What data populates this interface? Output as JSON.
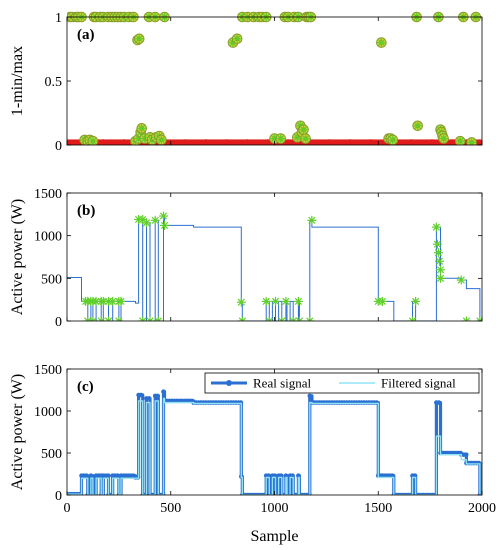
{
  "chart_data": [
    {
      "type": "scatter",
      "panel_label": "(a)",
      "ylabel": "1-min/max",
      "xlim": [
        0,
        2000
      ],
      "ylim": [
        0,
        1
      ],
      "yticks": [
        {
          "v": 0,
          "label": "0"
        },
        {
          "v": 0.5,
          "label": "0.5"
        },
        {
          "v": 1,
          "label": "1"
        }
      ],
      "xticks": [
        0,
        500,
        1000,
        1500,
        2000
      ],
      "grid": false,
      "colors": {
        "red_points": "#e01b1b",
        "circles": "#8a9a2a",
        "markers": "#5fcf2a"
      },
      "baseline_band": {
        "x_range": [
          0,
          2000
        ],
        "y_max": 0.02
      },
      "marker_points": [
        {
          "x": 15,
          "y": 1
        },
        {
          "x": 25,
          "y": 1
        },
        {
          "x": 45,
          "y": 1
        },
        {
          "x": 55,
          "y": 1
        },
        {
          "x": 70,
          "y": 1
        },
        {
          "x": 85,
          "y": 0.04
        },
        {
          "x": 100,
          "y": 0.03
        },
        {
          "x": 110,
          "y": 0.04
        },
        {
          "x": 125,
          "y": 0.03
        },
        {
          "x": 130,
          "y": 1
        },
        {
          "x": 140,
          "y": 1
        },
        {
          "x": 160,
          "y": 1
        },
        {
          "x": 175,
          "y": 1
        },
        {
          "x": 200,
          "y": 1
        },
        {
          "x": 215,
          "y": 1
        },
        {
          "x": 230,
          "y": 1
        },
        {
          "x": 245,
          "y": 1
        },
        {
          "x": 260,
          "y": 1
        },
        {
          "x": 275,
          "y": 1
        },
        {
          "x": 300,
          "y": 1
        },
        {
          "x": 320,
          "y": 1
        },
        {
          "x": 330,
          "y": 0.03
        },
        {
          "x": 340,
          "y": 0.82
        },
        {
          "x": 348,
          "y": 0.83
        },
        {
          "x": 345,
          "y": 0.05
        },
        {
          "x": 355,
          "y": 0.1
        },
        {
          "x": 360,
          "y": 0.13
        },
        {
          "x": 375,
          "y": 0.05
        },
        {
          "x": 395,
          "y": 1
        },
        {
          "x": 400,
          "y": 0.06
        },
        {
          "x": 410,
          "y": 0.04
        },
        {
          "x": 425,
          "y": 1
        },
        {
          "x": 430,
          "y": 0.06
        },
        {
          "x": 445,
          "y": 0.07
        },
        {
          "x": 455,
          "y": 0.04
        },
        {
          "x": 470,
          "y": 1
        },
        {
          "x": 800,
          "y": 0.8
        },
        {
          "x": 820,
          "y": 0.83
        },
        {
          "x": 845,
          "y": 1
        },
        {
          "x": 870,
          "y": 1
        },
        {
          "x": 900,
          "y": 1
        },
        {
          "x": 925,
          "y": 1
        },
        {
          "x": 940,
          "y": 1
        },
        {
          "x": 960,
          "y": 1
        },
        {
          "x": 1000,
          "y": 0.05
        },
        {
          "x": 1030,
          "y": 0.05
        },
        {
          "x": 1050,
          "y": 1
        },
        {
          "x": 1065,
          "y": 1
        },
        {
          "x": 1095,
          "y": 1
        },
        {
          "x": 1110,
          "y": 0.06
        },
        {
          "x": 1115,
          "y": 1
        },
        {
          "x": 1125,
          "y": 0.15
        },
        {
          "x": 1132,
          "y": 0.1
        },
        {
          "x": 1140,
          "y": 0.12
        },
        {
          "x": 1150,
          "y": 0.05
        },
        {
          "x": 1155,
          "y": 1
        },
        {
          "x": 1165,
          "y": 1
        },
        {
          "x": 1175,
          "y": 1
        },
        {
          "x": 1515,
          "y": 0.8
        },
        {
          "x": 1550,
          "y": 0.05
        },
        {
          "x": 1560,
          "y": 0.05
        },
        {
          "x": 1570,
          "y": 0.04
        },
        {
          "x": 1685,
          "y": 1
        },
        {
          "x": 1690,
          "y": 0.15
        },
        {
          "x": 1800,
          "y": 0.12
        },
        {
          "x": 1805,
          "y": 0.1
        },
        {
          "x": 1810,
          "y": 0.07
        },
        {
          "x": 1815,
          "y": 0.05
        },
        {
          "x": 1790,
          "y": 1
        },
        {
          "x": 1895,
          "y": 0.03
        },
        {
          "x": 1910,
          "y": 1
        },
        {
          "x": 1950,
          "y": 0.02
        },
        {
          "x": 1970,
          "y": 1
        }
      ]
    },
    {
      "type": "line",
      "panel_label": "(b)",
      "ylabel": "Active power (W)",
      "xlim": [
        0,
        2000
      ],
      "ylim": [
        0,
        1500
      ],
      "yticks": [
        {
          "v": 0,
          "label": "0"
        },
        {
          "v": 500,
          "label": "500"
        },
        {
          "v": 1000,
          "label": "1000"
        },
        {
          "v": 1500,
          "label": "1500"
        }
      ],
      "xticks": [
        0,
        500,
        1000,
        1500,
        2000
      ],
      "grid": false,
      "colors": {
        "line": "#2a6fd2",
        "markers": "#5fcf2a"
      },
      "series": [
        {
          "x": [
            0,
            70,
            70,
            100,
            100,
            115,
            115,
            125,
            125,
            140,
            140,
            165,
            165,
            175,
            175,
            200,
            200,
            220,
            220,
            250,
            250,
            260,
            260,
            330,
            330,
            345,
            345,
            365,
            365,
            383,
            383,
            400,
            400,
            425,
            425,
            440,
            440,
            465,
            465,
            470,
            470,
            610,
            610,
            840,
            840,
            845,
            845,
            960,
            960,
            975,
            975,
            990,
            990,
            1005,
            1005,
            1020,
            1020,
            1035,
            1035,
            1055,
            1055,
            1060,
            1060,
            1075,
            1075,
            1090,
            1090,
            1115,
            1115,
            1120,
            1120,
            1170,
            1170,
            1180,
            1180,
            1500,
            1500,
            1520,
            1520,
            1575,
            1575,
            1665,
            1665,
            1680,
            1680,
            1780,
            1780,
            1800,
            1800,
            1900,
            1900,
            1925,
            1925,
            1990,
            1990,
            2000
          ],
          "y": [
            510,
            510,
            230,
            230,
            0,
            0,
            230,
            230,
            0,
            0,
            230,
            230,
            0,
            0,
            230,
            230,
            0,
            0,
            230,
            230,
            0,
            0,
            230,
            230,
            210,
            210,
            1190,
            1190,
            0,
            0,
            1150,
            1150,
            0,
            0,
            1180,
            1180,
            0,
            0,
            1230,
            1230,
            1120,
            1120,
            1100,
            1100,
            220,
            220,
            0,
            0,
            230,
            230,
            0,
            0,
            230,
            230,
            0,
            0,
            230,
            230,
            0,
            0,
            230,
            230,
            0,
            0,
            230,
            230,
            0,
            0,
            230,
            230,
            0,
            0,
            1180,
            1180,
            1100,
            1100,
            230,
            230,
            230,
            230,
            0,
            0,
            230,
            230,
            0,
            0,
            1100,
            1100,
            500,
            500,
            480,
            480,
            380,
            380,
            0,
            0
          ]
        }
      ],
      "marker_points": [
        {
          "x": 90,
          "y": 230
        },
        {
          "x": 100,
          "y": 230
        },
        {
          "x": 115,
          "y": 230
        },
        {
          "x": 125,
          "y": 230
        },
        {
          "x": 140,
          "y": 230
        },
        {
          "x": 165,
          "y": 230
        },
        {
          "x": 175,
          "y": 230
        },
        {
          "x": 200,
          "y": 230
        },
        {
          "x": 220,
          "y": 230
        },
        {
          "x": 250,
          "y": 230
        },
        {
          "x": 260,
          "y": 230
        },
        {
          "x": 100,
          "y": 0
        },
        {
          "x": 125,
          "y": 0
        },
        {
          "x": 165,
          "y": 0
        },
        {
          "x": 200,
          "y": 0
        },
        {
          "x": 250,
          "y": 0
        },
        {
          "x": 345,
          "y": 1190
        },
        {
          "x": 365,
          "y": 1190
        },
        {
          "x": 383,
          "y": 1150
        },
        {
          "x": 425,
          "y": 1180
        },
        {
          "x": 465,
          "y": 1230
        },
        {
          "x": 470,
          "y": 1120
        },
        {
          "x": 365,
          "y": 0
        },
        {
          "x": 400,
          "y": 0
        },
        {
          "x": 440,
          "y": 0
        },
        {
          "x": 840,
          "y": 220
        },
        {
          "x": 845,
          "y": 0
        },
        {
          "x": 960,
          "y": 230
        },
        {
          "x": 975,
          "y": 0
        },
        {
          "x": 1005,
          "y": 230
        },
        {
          "x": 1035,
          "y": 0
        },
        {
          "x": 1055,
          "y": 230
        },
        {
          "x": 1090,
          "y": 0
        },
        {
          "x": 1115,
          "y": 230
        },
        {
          "x": 1120,
          "y": 0
        },
        {
          "x": 1170,
          "y": 0
        },
        {
          "x": 1180,
          "y": 1180
        },
        {
          "x": 1500,
          "y": 230
        },
        {
          "x": 1520,
          "y": 230
        },
        {
          "x": 1665,
          "y": 0
        },
        {
          "x": 1680,
          "y": 230
        },
        {
          "x": 1780,
          "y": 1100
        },
        {
          "x": 1785,
          "y": 900
        },
        {
          "x": 1790,
          "y": 800
        },
        {
          "x": 1795,
          "y": 700
        },
        {
          "x": 1800,
          "y": 600
        },
        {
          "x": 1800,
          "y": 500
        },
        {
          "x": 1900,
          "y": 480
        },
        {
          "x": 1925,
          "y": 0
        },
        {
          "x": 1990,
          "y": 0
        }
      ]
    },
    {
      "type": "line",
      "panel_label": "(c)",
      "ylabel": "Active power (W)",
      "xlabel": "Sample",
      "xlim": [
        0,
        2000
      ],
      "ylim": [
        0,
        1500
      ],
      "yticks": [
        {
          "v": 0,
          "label": "0"
        },
        {
          "v": 500,
          "label": "500"
        },
        {
          "v": 1000,
          "label": "1000"
        },
        {
          "v": 1500,
          "label": "1500"
        }
      ],
      "xticks": [
        0,
        500,
        1000,
        1500,
        2000
      ],
      "grid": false,
      "legend": {
        "position": "top-right",
        "entries": [
          "Real signal",
          "Filtered signal"
        ]
      },
      "colors": {
        "real": "#2a6fd2",
        "filtered": "#8fe3f5"
      },
      "series": [
        {
          "name": "Real signal",
          "x": [
            0,
            70,
            70,
            100,
            100,
            115,
            115,
            125,
            125,
            140,
            140,
            165,
            165,
            175,
            175,
            200,
            200,
            220,
            220,
            250,
            250,
            260,
            260,
            330,
            330,
            345,
            345,
            365,
            365,
            383,
            383,
            400,
            400,
            425,
            425,
            440,
            440,
            465,
            465,
            470,
            470,
            610,
            610,
            840,
            840,
            845,
            845,
            960,
            960,
            975,
            975,
            990,
            990,
            1005,
            1005,
            1020,
            1020,
            1035,
            1035,
            1055,
            1055,
            1060,
            1060,
            1075,
            1075,
            1090,
            1090,
            1115,
            1115,
            1120,
            1120,
            1170,
            1170,
            1180,
            1180,
            1500,
            1500,
            1520,
            1520,
            1575,
            1575,
            1665,
            1665,
            1680,
            1680,
            1780,
            1780,
            1800,
            1800,
            1900,
            1900,
            1925,
            1925,
            1990,
            1990,
            2000
          ],
          "y": [
            10,
            10,
            230,
            230,
            0,
            0,
            230,
            230,
            0,
            0,
            230,
            230,
            0,
            0,
            230,
            230,
            0,
            0,
            230,
            230,
            0,
            0,
            230,
            230,
            210,
            210,
            1190,
            1190,
            0,
            0,
            1150,
            1150,
            0,
            0,
            1180,
            1180,
            0,
            0,
            1230,
            1230,
            1120,
            1120,
            1100,
            1100,
            220,
            220,
            0,
            0,
            230,
            230,
            0,
            0,
            230,
            230,
            0,
            0,
            230,
            230,
            0,
            0,
            230,
            230,
            0,
            0,
            230,
            230,
            0,
            0,
            230,
            230,
            0,
            0,
            1180,
            1180,
            1100,
            1100,
            230,
            230,
            230,
            230,
            0,
            0,
            230,
            230,
            0,
            0,
            1100,
            1100,
            500,
            500,
            480,
            480,
            380,
            380,
            0,
            0
          ]
        },
        {
          "name": "Filtered signal",
          "x": [
            0,
            70,
            70,
            100,
            100,
            115,
            115,
            125,
            125,
            140,
            140,
            165,
            165,
            175,
            175,
            200,
            200,
            220,
            220,
            250,
            250,
            260,
            260,
            330,
            330,
            345,
            345,
            365,
            365,
            383,
            383,
            400,
            400,
            425,
            425,
            440,
            440,
            465,
            465,
            470,
            470,
            610,
            610,
            840,
            840,
            845,
            845,
            960,
            960,
            975,
            975,
            990,
            990,
            1005,
            1005,
            1020,
            1020,
            1035,
            1035,
            1055,
            1055,
            1060,
            1060,
            1075,
            1075,
            1090,
            1090,
            1115,
            1115,
            1120,
            1120,
            1170,
            1170,
            1180,
            1180,
            1500,
            1500,
            1520,
            1520,
            1575,
            1575,
            1665,
            1665,
            1680,
            1680,
            1780,
            1780,
            1800,
            1800,
            1900,
            1900,
            1925,
            1925,
            1990,
            1990,
            2000
          ],
          "y": [
            10,
            10,
            200,
            200,
            0,
            0,
            200,
            200,
            0,
            0,
            200,
            200,
            0,
            0,
            200,
            200,
            0,
            0,
            200,
            200,
            0,
            0,
            200,
            200,
            200,
            200,
            1120,
            1120,
            0,
            0,
            1100,
            1100,
            0,
            0,
            1120,
            1120,
            0,
            0,
            1150,
            1150,
            1100,
            1100,
            1090,
            1090,
            210,
            210,
            0,
            0,
            210,
            210,
            0,
            0,
            210,
            210,
            0,
            0,
            210,
            210,
            0,
            0,
            210,
            210,
            0,
            0,
            210,
            210,
            0,
            0,
            210,
            210,
            0,
            0,
            1100,
            1100,
            1090,
            1090,
            210,
            210,
            210,
            210,
            0,
            0,
            210,
            210,
            0,
            0,
            700,
            700,
            480,
            480,
            420,
            420,
            370,
            370,
            0,
            0
          ]
        }
      ]
    }
  ]
}
